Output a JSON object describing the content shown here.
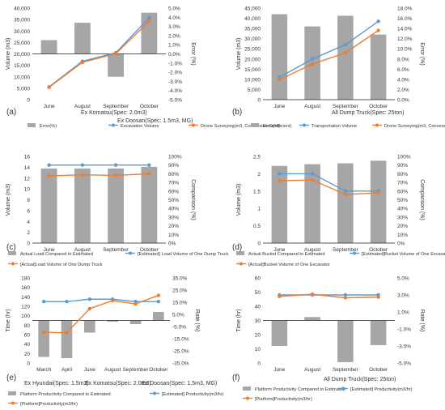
{
  "chart_data": [
    {
      "panel": "(a)",
      "type": "bar+line",
      "categories": [
        "June",
        "August",
        "September",
        "October"
      ],
      "category_caption": [
        "Ex Komatsu(Spec: 2.0m3)",
        "Ex Doosan(Spec: 1.5m3, MG)"
      ],
      "ylabel": "Volume (m3)",
      "y2label": "Error (%)",
      "ylim": [
        0,
        40000
      ],
      "yticks": [
        0,
        5000,
        10000,
        15000,
        20000,
        25000,
        30000,
        35000,
        40000
      ],
      "y2lim": [
        -5,
        5
      ],
      "y2ticks": [
        "-5.0%",
        "-4.0%",
        "-3.0%",
        "-2.0%",
        "-1.0%",
        "0.0%",
        "1.0%",
        "2.0%",
        "3.0%",
        "4.0%",
        "5.0%"
      ],
      "bars": {
        "name": "Error(%)",
        "axis": "y2",
        "values": [
          1.5,
          3.4,
          -2.5,
          4.5
        ],
        "color": "#a6a6a6"
      },
      "series": [
        {
          "name": "Excavation Volume",
          "values": [
            5600,
            16800,
            20500,
            35800
          ],
          "color": "#5b9bd5"
        },
        {
          "name": "Drone Surveying(m3, Conversion Coefficient)",
          "values": [
            5400,
            16300,
            20100,
            34300
          ],
          "color": "#ed7d31"
        }
      ]
    },
    {
      "panel": "(b)",
      "type": "bar+line",
      "categories": [
        "June",
        "August",
        "September",
        "October"
      ],
      "category_caption": [
        "All Dump Truck(Spec: 25ton)"
      ],
      "ylabel": "Volume (m3)",
      "y2label": "Error (%)",
      "ylim": [
        0,
        45000
      ],
      "yticks": [
        0,
        5000,
        10000,
        15000,
        20000,
        25000,
        30000,
        35000,
        40000,
        45000
      ],
      "y2lim": [
        0,
        18
      ],
      "y2ticks": [
        "0.0%",
        "2.0%",
        "4.0%",
        "6.0%",
        "8.0%",
        "10.0%",
        "12.0%",
        "14.0%",
        "16.0%",
        "18.0%"
      ],
      "bars": {
        "name": "Error(%)",
        "axis": "y2",
        "values": [
          16.8,
          14.4,
          16.5,
          12.8
        ],
        "color": "#a6a6a6"
      },
      "series": [
        {
          "name": "Transportation Volume",
          "values": [
            11000,
            20000,
            27000,
            38500
          ],
          "color": "#5b9bd5"
        },
        {
          "name": "Drone Surveying(m3, Conversion Coefficient)",
          "values": [
            9800,
            17500,
            23000,
            34000
          ],
          "color": "#ed7d31"
        }
      ]
    },
    {
      "panel": "(c)",
      "type": "bar+line",
      "categories": [
        "June",
        "August",
        "September",
        "October"
      ],
      "ylabel": "Volume (m3)",
      "y2label": "Comparison (%)",
      "ylim": [
        0,
        16
      ],
      "yticks": [
        0,
        2,
        4,
        6,
        8,
        10,
        12,
        14,
        16
      ],
      "y2lim": [
        0,
        100
      ],
      "y2ticks": [
        "0%",
        "10%",
        "20%",
        "30%",
        "40%",
        "50%",
        "60%",
        "70%",
        "80%",
        "90%",
        "100%"
      ],
      "bars": {
        "name": "Actual Load Compared to Estimated",
        "axis": "y2",
        "values": [
          86,
          86,
          86,
          88
        ],
        "color": "#a6a6a6"
      },
      "series": [
        {
          "name": "[Estimated] Load Volume of One Dump Truck",
          "values": [
            14.4,
            14.4,
            14.4,
            14.4
          ],
          "color": "#5b9bd5"
        },
        {
          "name": "[Actual]Load Volume of One Dump Truck",
          "values": [
            12.4,
            12.6,
            12.5,
            12.8
          ],
          "color": "#ed7d31"
        }
      ]
    },
    {
      "panel": "(d)",
      "type": "bar+line",
      "categories": [
        "June",
        "August",
        "September",
        "October"
      ],
      "ylabel": "Volume (m3)",
      "y2label": "Comparison (%)",
      "ylim": [
        0,
        2.5
      ],
      "yticks": [
        0,
        0.5,
        1,
        1.5,
        2,
        2.5
      ],
      "y2lim": [
        0,
        100
      ],
      "y2ticks": [
        "0%",
        "10%",
        "20%",
        "30%",
        "40%",
        "50%",
        "60%",
        "70%",
        "80%",
        "90%",
        "100%"
      ],
      "bars": {
        "name": "Actual Bucket Compared to Estimated",
        "axis": "y2",
        "values": [
          89,
          91,
          92,
          95
        ],
        "color": "#a6a6a6"
      },
      "series": [
        {
          "name": "[Estimated]Bucket Volume of One Excavator",
          "values": [
            2.0,
            2.0,
            1.5,
            1.5
          ],
          "color": "#5b9bd5"
        },
        {
          "name": "[Actual]Bucket Volume of One Excavator",
          "values": [
            1.8,
            1.82,
            1.4,
            1.45
          ],
          "color": "#ed7d31"
        }
      ]
    },
    {
      "panel": "(e)",
      "type": "bar+line",
      "categories": [
        "March",
        "April",
        "June",
        "August",
        "September",
        "October"
      ],
      "category_caption": [
        "Ex Hyundai(Spec: 1.5m3)",
        "Ex Komatsu(Spec: 2.0m3)",
        "Ex Doosan(Spec: 1.5m3, MG)"
      ],
      "ylabel": "Time (hr)",
      "y2label": "Rate (%)",
      "ylim": [
        0,
        180
      ],
      "yticks": [
        0,
        20,
        40,
        60,
        80,
        100,
        120,
        140,
        160,
        180
      ],
      "y2lim": [
        -35,
        35
      ],
      "y2ticks": [
        "-35.0%",
        "-25.0%",
        "-15.0%",
        "-5.0%",
        "5.0%",
        "15.0%",
        "25.0%",
        "35.0%"
      ],
      "bars": {
        "name": "Platform Productivity Compared to Estimated",
        "axis": "y2",
        "values": [
          -30,
          -31,
          -10,
          -1,
          -3,
          7
        ],
        "color": "#a6a6a6"
      },
      "series": [
        {
          "name": "[Estimated] Productivity(m3/hr)",
          "values": [
            130,
            130,
            135,
            135,
            130,
            130
          ],
          "color": "#5b9bd5"
        },
        {
          "name": "[Platform]Productivity(m3/hr)",
          "values": [
            65,
            64,
            115,
            132,
            125,
            143
          ],
          "color": "#ed7d31"
        }
      ]
    },
    {
      "panel": "(f)",
      "type": "bar+line",
      "categories": [
        "June",
        "August",
        "September",
        "October"
      ],
      "category_caption": [
        "All Dump Truck(Spec: 25ton)"
      ],
      "ylabel": "Time (hr)",
      "y2label": "Rate (%)",
      "ylim": [
        0,
        60
      ],
      "yticks": [
        0,
        10,
        20,
        30,
        40,
        50,
        60
      ],
      "y2lim": [
        -5,
        5
      ],
      "y2ticks": [
        "-5.0%",
        "-3.0%",
        "-1.0%",
        "1.0%",
        "3.0%",
        "5.0%"
      ],
      "bars": {
        "name": "Platform Productivity Compared to Estimated",
        "axis": "y2",
        "values": [
          -3.0,
          0.4,
          -4.9,
          -2.9
        ],
        "color": "#a6a6a6"
      },
      "series": [
        {
          "name": "[Estimated] Productivity(m3/hr)",
          "values": [
            48,
            48,
            48,
            48
          ],
          "color": "#5b9bd5"
        },
        {
          "name": "[Platform]Productivity(m3/hr)",
          "values": [
            47,
            48.5,
            46,
            46.5
          ],
          "color": "#ed7d31"
        }
      ]
    }
  ]
}
